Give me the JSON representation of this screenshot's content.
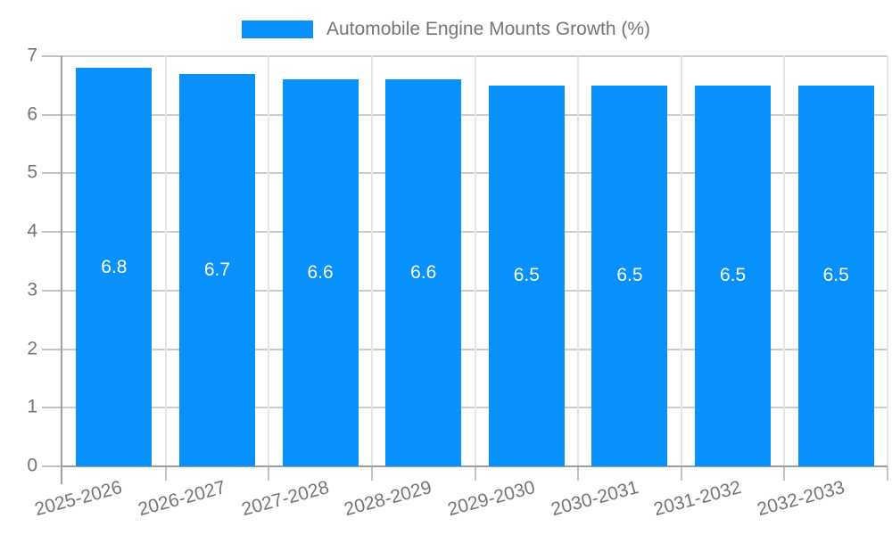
{
  "chart_data": {
    "type": "bar",
    "title": "",
    "xlabel": "",
    "ylabel": "",
    "categories": [
      "2025-2026",
      "2026-2027",
      "2027-2028",
      "2028-2029",
      "2029-2030",
      "2030-2031",
      "2031-2032",
      "2032-2033"
    ],
    "series": [
      {
        "name": "Automobile Engine Mounts Growth (%)",
        "values": [
          6.8,
          6.7,
          6.6,
          6.6,
          6.5,
          6.5,
          6.5,
          6.5
        ],
        "value_labels": [
          "6.8",
          "6.7",
          "6.6",
          "6.6",
          "6.5",
          "6.5",
          "6.5",
          "6.5"
        ]
      }
    ],
    "ylim": [
      0,
      7
    ],
    "y_ticks": [
      0,
      1,
      2,
      3,
      4,
      5,
      6,
      7
    ],
    "grid": true,
    "legend_position": "top",
    "colors": {
      "bar": "#0991fb",
      "bar_value_text": "#ffffff",
      "axis_text": "#757575",
      "h_gridline": "#cccccc",
      "v_gridline": "#e6e6e6",
      "tick": "#c2c2c2",
      "axis_line": "#9e9e9e",
      "background": "#ffffff"
    }
  }
}
